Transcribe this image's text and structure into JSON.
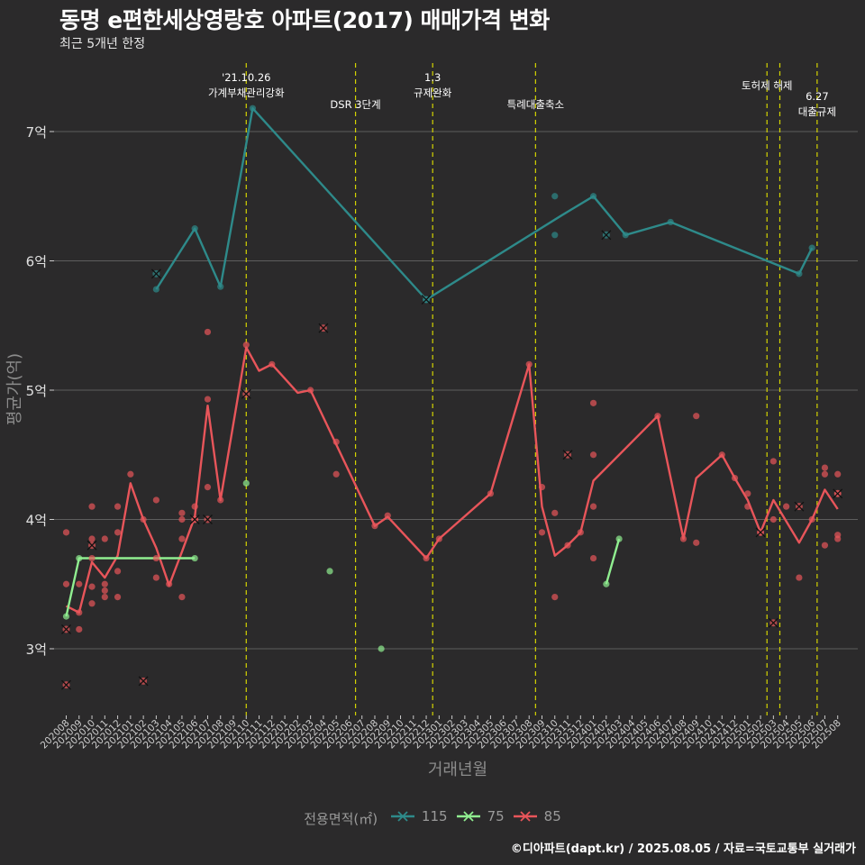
{
  "title": "동명 e편한세상영랑호 아파트(2017) 매매가격 변화",
  "subtitle": "최근 5개년 한정",
  "caption": "©디아파트(dapt.kr) / 2025.08.05 / 자료=국토교통부 실거래가",
  "chart_data": {
    "type": "line",
    "xlabel": "거래년월",
    "ylabel": "평균가(억)",
    "x": [
      "202008",
      "202009",
      "202010",
      "202011",
      "202012",
      "202101",
      "202102",
      "202103",
      "202104",
      "202105",
      "202106",
      "202107",
      "202108",
      "202109",
      "202110",
      "202111",
      "202112",
      "202201",
      "202202",
      "202203",
      "202204",
      "202205",
      "202206",
      "202207",
      "202208",
      "202209",
      "202210",
      "202211",
      "202212",
      "202301",
      "202302",
      "202303",
      "202304",
      "202305",
      "202306",
      "202307",
      "202308",
      "202309",
      "202310",
      "202311",
      "202312",
      "202401",
      "202402",
      "202403",
      "202404",
      "202405",
      "202406",
      "202407",
      "202408",
      "202409",
      "202410",
      "202411",
      "202412",
      "202501",
      "202502",
      "202503",
      "202504",
      "202505",
      "202506",
      "202507",
      "202508"
    ],
    "yticks": [
      {
        "value": 3,
        "label": "3억"
      },
      {
        "value": 4,
        "label": "4억"
      },
      {
        "value": 5,
        "label": "5억"
      },
      {
        "value": 6,
        "label": "6억"
      },
      {
        "value": 7,
        "label": "7억"
      }
    ],
    "ylim": [
      2.5,
      7.5
    ],
    "grid": true,
    "legend_title": "전용면적(㎡)",
    "legend_position": "bottom",
    "series": [
      {
        "name": "115",
        "color": "#2e8a8a",
        "line": [
          [
            7,
            5.78
          ],
          [
            10,
            6.25
          ],
          [
            12,
            5.8
          ],
          [
            14.5,
            7.18
          ],
          [
            28,
            5.7
          ],
          [
            38.5,
            6.35
          ],
          [
            41,
            6.5
          ],
          [
            43.5,
            6.2
          ],
          [
            47,
            6.3
          ],
          [
            57,
            5.9
          ],
          [
            58,
            6.1
          ]
        ],
        "points": [
          [
            7,
            5.78
          ],
          [
            10,
            6.25
          ],
          [
            12,
            5.8
          ],
          [
            14.5,
            7.18
          ],
          [
            28,
            5.7
          ],
          [
            38,
            6.5
          ],
          [
            38,
            6.2
          ],
          [
            41,
            6.5
          ],
          [
            43.5,
            6.2
          ],
          [
            47,
            6.3
          ],
          [
            57,
            5.9
          ],
          [
            58,
            6.1
          ]
        ],
        "crosses": [
          [
            7,
            5.9
          ],
          [
            28,
            5.7
          ],
          [
            42,
            6.2
          ]
        ]
      },
      {
        "name": "75",
        "color": "#90ee90",
        "line": [
          [
            0,
            3.25
          ],
          [
            1,
            3.7
          ],
          [
            10,
            3.7
          ]
        ],
        "line2": [
          [
            42,
            3.5
          ],
          [
            43,
            3.85
          ]
        ],
        "points": [
          [
            0,
            3.25
          ],
          [
            1,
            3.7
          ],
          [
            10,
            3.7
          ],
          [
            14,
            4.28
          ],
          [
            20.5,
            3.6
          ],
          [
            24.5,
            3.0
          ],
          [
            42,
            3.5
          ],
          [
            43,
            3.85
          ]
        ],
        "crosses": []
      },
      {
        "name": "85",
        "color": "#e8555a",
        "line": [
          [
            0,
            3.33
          ],
          [
            1,
            3.28
          ],
          [
            2,
            3.67
          ],
          [
            3,
            3.55
          ],
          [
            4,
            3.72
          ],
          [
            5,
            4.28
          ],
          [
            6,
            4.0
          ],
          [
            7,
            3.78
          ],
          [
            8,
            3.49
          ],
          [
            9,
            3.75
          ],
          [
            10,
            4.02
          ],
          [
            11,
            4.88
          ],
          [
            12,
            4.15
          ],
          [
            14,
            5.33
          ],
          [
            15,
            5.15
          ],
          [
            16,
            5.2
          ],
          [
            18,
            4.98
          ],
          [
            19,
            5.0
          ],
          [
            24,
            3.95
          ],
          [
            25,
            4.02
          ],
          [
            28,
            3.7
          ],
          [
            29,
            3.85
          ],
          [
            33,
            4.2
          ],
          [
            36,
            5.2
          ],
          [
            37,
            4.1
          ],
          [
            38,
            3.72
          ],
          [
            39,
            3.8
          ],
          [
            40,
            3.9
          ],
          [
            41,
            4.3
          ],
          [
            46,
            4.8
          ],
          [
            48,
            3.85
          ],
          [
            49,
            4.32
          ],
          [
            51,
            4.5
          ],
          [
            52,
            4.32
          ],
          [
            53,
            4.15
          ],
          [
            54,
            3.9
          ],
          [
            55,
            4.15
          ],
          [
            57,
            3.82
          ],
          [
            58,
            4.0
          ],
          [
            59,
            4.23
          ],
          [
            60,
            4.08
          ]
        ],
        "points": [
          [
            0,
            3.9
          ],
          [
            0,
            3.5
          ],
          [
            1,
            3.28
          ],
          [
            1,
            3.15
          ],
          [
            1,
            3.5
          ],
          [
            2,
            4.1
          ],
          [
            2,
            3.85
          ],
          [
            2,
            3.7
          ],
          [
            2,
            3.48
          ],
          [
            2,
            3.35
          ],
          [
            3,
            3.85
          ],
          [
            3,
            3.5
          ],
          [
            3,
            3.45
          ],
          [
            3,
            3.4
          ],
          [
            4,
            4.1
          ],
          [
            4,
            3.9
          ],
          [
            4,
            3.6
          ],
          [
            4,
            3.4
          ],
          [
            5,
            4.35
          ],
          [
            6,
            4.0
          ],
          [
            7,
            4.15
          ],
          [
            7,
            3.7
          ],
          [
            7,
            3.55
          ],
          [
            8,
            3.5
          ],
          [
            9,
            4.05
          ],
          [
            9,
            4.0
          ],
          [
            9,
            3.85
          ],
          [
            9,
            3.4
          ],
          [
            10,
            4.1
          ],
          [
            10,
            4.0
          ],
          [
            11,
            5.45
          ],
          [
            11,
            4.93
          ],
          [
            11,
            4.25
          ],
          [
            12,
            4.15
          ],
          [
            14,
            5.35
          ],
          [
            16,
            5.2
          ],
          [
            19,
            5.0
          ],
          [
            21,
            4.6
          ],
          [
            21,
            4.35
          ],
          [
            24,
            3.95
          ],
          [
            25,
            4.03
          ],
          [
            28,
            3.7
          ],
          [
            29,
            3.85
          ],
          [
            33,
            4.2
          ],
          [
            36,
            5.2
          ],
          [
            37,
            4.25
          ],
          [
            37,
            3.9
          ],
          [
            38,
            4.05
          ],
          [
            38,
            3.4
          ],
          [
            39,
            3.8
          ],
          [
            40,
            3.9
          ],
          [
            41,
            4.9
          ],
          [
            41,
            4.5
          ],
          [
            41,
            4.1
          ],
          [
            41,
            3.7
          ],
          [
            46,
            4.8
          ],
          [
            48,
            3.85
          ],
          [
            49,
            4.8
          ],
          [
            49,
            3.82
          ],
          [
            51,
            4.5
          ],
          [
            52,
            4.32
          ],
          [
            53,
            4.2
          ],
          [
            53,
            4.1
          ],
          [
            54,
            3.9
          ],
          [
            55,
            4.45
          ],
          [
            55,
            4.0
          ],
          [
            56,
            4.1
          ],
          [
            57,
            3.55
          ],
          [
            58,
            4.0
          ],
          [
            59,
            4.4
          ],
          [
            59,
            4.35
          ],
          [
            59,
            3.8
          ],
          [
            60,
            4.35
          ],
          [
            60,
            4.2
          ],
          [
            60,
            3.88
          ],
          [
            60,
            3.85
          ]
        ],
        "crosses": [
          [
            0,
            3.15
          ],
          [
            0,
            2.72
          ],
          [
            2,
            3.8
          ],
          [
            6,
            2.75
          ],
          [
            10,
            4.0
          ],
          [
            11,
            4.0
          ],
          [
            14,
            4.97
          ],
          [
            20,
            5.48
          ],
          [
            39,
            4.5
          ],
          [
            54,
            3.9
          ],
          [
            55,
            3.2
          ],
          [
            57,
            4.1
          ],
          [
            60,
            4.2
          ]
        ]
      }
    ],
    "events": [
      {
        "x": 14,
        "label": [
          "'21.10.26",
          "가계부채관리강화"
        ],
        "label_top": 90
      },
      {
        "x": 22.5,
        "label": [
          "DSR 3단계"
        ],
        "label_top": 120
      },
      {
        "x": 28.5,
        "label": [
          "1.3",
          "규제완화"
        ],
        "label_top": 90
      },
      {
        "x": 36.5,
        "label": [
          "특례대출축소"
        ],
        "label_top": 120
      },
      {
        "x": 54.5,
        "label": [
          "토허제 해제"
        ],
        "label_top": 99
      },
      {
        "x": 55.5,
        "label": [],
        "label_top": 0
      },
      {
        "x": 58.4,
        "label": [
          "6.27",
          "대출규제"
        ],
        "label_top": 111
      }
    ]
  }
}
